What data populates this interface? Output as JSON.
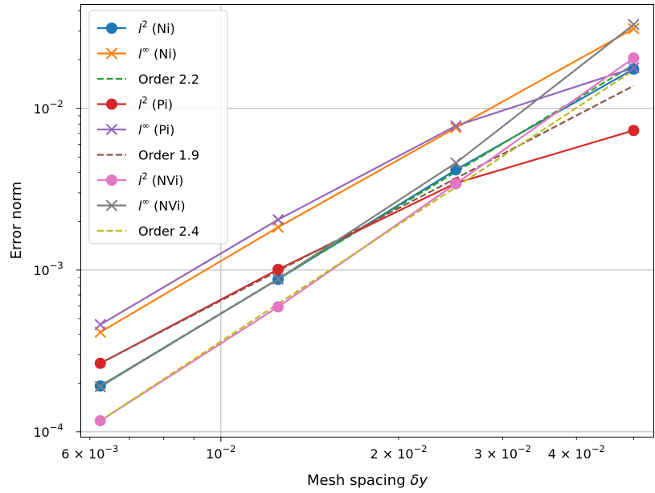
{
  "chart_data": {
    "type": "line",
    "xscale": "log",
    "yscale": "log",
    "xlabel": "Mesh spacing δy",
    "ylabel": "Error norm",
    "xlim": [
      0.0058,
      0.054
    ],
    "ylim": [
      9.32e-05,
      0.0437
    ],
    "grid": "major",
    "legend_loc": "upper left",
    "x_ticks": [
      {
        "value": 0.006,
        "mant": "6 × 10",
        "exp": "−3"
      },
      {
        "value": 0.01,
        "mant": "10",
        "exp": "−2"
      },
      {
        "value": 0.02,
        "mant": "2 × 10",
        "exp": "−2"
      },
      {
        "value": 0.03,
        "mant": "3 × 10",
        "exp": "−2"
      },
      {
        "value": 0.04,
        "mant": "4 × 10",
        "exp": "−2"
      }
    ],
    "y_ticks": [
      {
        "value": 0.0001,
        "mant": "10",
        "exp": "−4"
      },
      {
        "value": 0.001,
        "mant": "10",
        "exp": "−3"
      },
      {
        "value": 0.01,
        "mant": "10",
        "exp": "−2"
      }
    ],
    "x": [
      0.00625,
      0.0125,
      0.025,
      0.05
    ],
    "series": [
      {
        "name": "l² (Ni)",
        "color": "#1f77b4",
        "marker": "circle",
        "style": "solid",
        "values": [
          0.000192,
          0.000877,
          0.00417,
          0.0175
        ]
      },
      {
        "name": "l∞ (Ni)",
        "color": "#ff7f0e",
        "marker": "x",
        "style": "solid",
        "values": [
          0.000413,
          0.00184,
          0.0076,
          0.0311
        ]
      },
      {
        "name": "Order 2.2",
        "color": "#2ca02c",
        "marker": "none",
        "style": "dashed",
        "values": [
          0.000192,
          0.000882,
          0.00405,
          0.0186
        ]
      },
      {
        "name": "l² (Pi)",
        "color": "#d62728",
        "marker": "circle",
        "style": "solid",
        "values": [
          0.000265,
          0.00101,
          0.00345,
          0.0073
        ]
      },
      {
        "name": "l∞ (Pi)",
        "color": "#9467bd",
        "marker": "x",
        "style": "solid",
        "values": [
          0.00046,
          0.00205,
          0.0078,
          0.0178
        ]
      },
      {
        "name": "Order 1.9",
        "color": "#8c564b",
        "marker": "none",
        "style": "dashed",
        "values": [
          0.000265,
          0.000988,
          0.00369,
          0.0138
        ]
      },
      {
        "name": "l² (NVi)",
        "color": "#e377c2",
        "marker": "circle",
        "style": "solid",
        "values": [
          0.000117,
          0.000592,
          0.00342,
          0.0205
        ]
      },
      {
        "name": "l∞ (NVi)",
        "color": "#7f7f7f",
        "marker": "x",
        "style": "solid",
        "values": [
          0.00019,
          0.00088,
          0.0046,
          0.033
        ]
      },
      {
        "name": "Order 2.4",
        "color": "#bcbd22",
        "marker": "none",
        "style": "dashed",
        "values": [
          0.000117,
          0.000618,
          0.00326,
          0.0172
        ]
      }
    ],
    "legend_entries": [
      {
        "base": "l",
        "sup": "2",
        "rest": " (Ni)"
      },
      {
        "base": "l",
        "sup": "∞",
        "rest": " (Ni)"
      },
      {
        "base": "",
        "sup": "",
        "rest": "Order 2.2"
      },
      {
        "base": "l",
        "sup": "2",
        "rest": " (Pi)"
      },
      {
        "base": "l",
        "sup": "∞",
        "rest": " (Pi)"
      },
      {
        "base": "",
        "sup": "",
        "rest": "Order 1.9"
      },
      {
        "base": "l",
        "sup": "2",
        "rest": " (NVi)"
      },
      {
        "base": "l",
        "sup": "∞",
        "rest": " (NVi)"
      },
      {
        "base": "",
        "sup": "",
        "rest": "Order 2.4"
      }
    ]
  }
}
